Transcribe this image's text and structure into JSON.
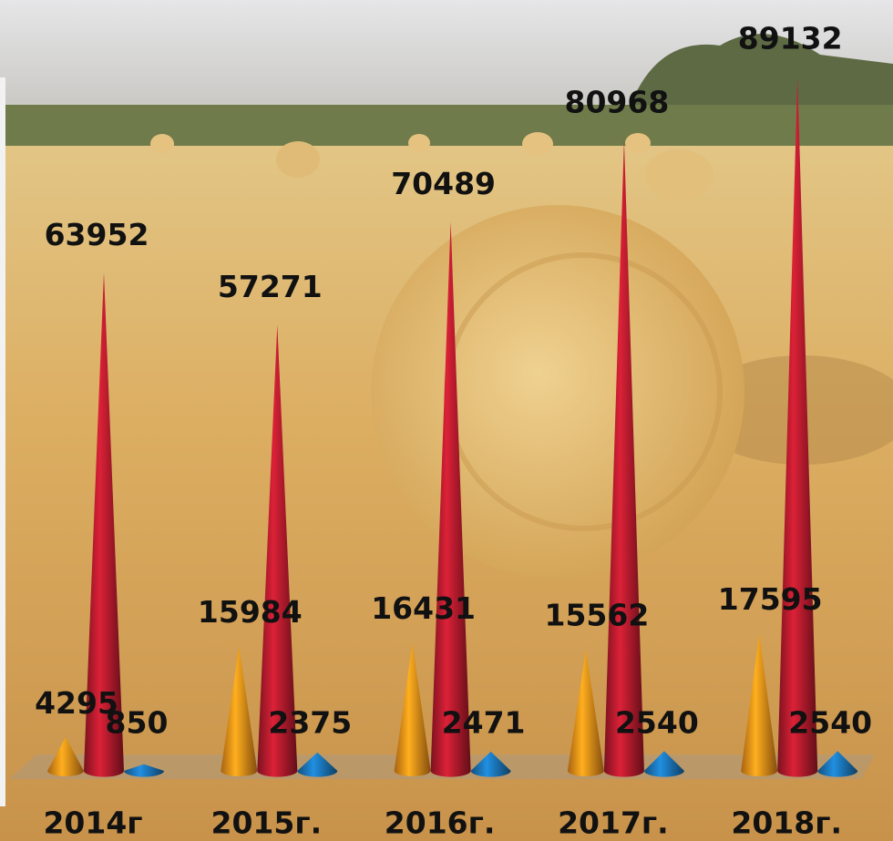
{
  "chart_data": {
    "type": "cone",
    "categories": [
      "2014г",
      "2015г.",
      "2016г.",
      "2017г.",
      "2018г."
    ],
    "series": [
      {
        "color": "#f08c18",
        "values": [
          4295,
          15984,
          16431,
          15562,
          17595
        ]
      },
      {
        "color": "#b01a2c",
        "values": [
          63952,
          57271,
          70489,
          80968,
          89132
        ]
      },
      {
        "color": "#1a72b4",
        "values": [
          850,
          2375,
          2471,
          2540,
          2540
        ]
      }
    ]
  }
}
